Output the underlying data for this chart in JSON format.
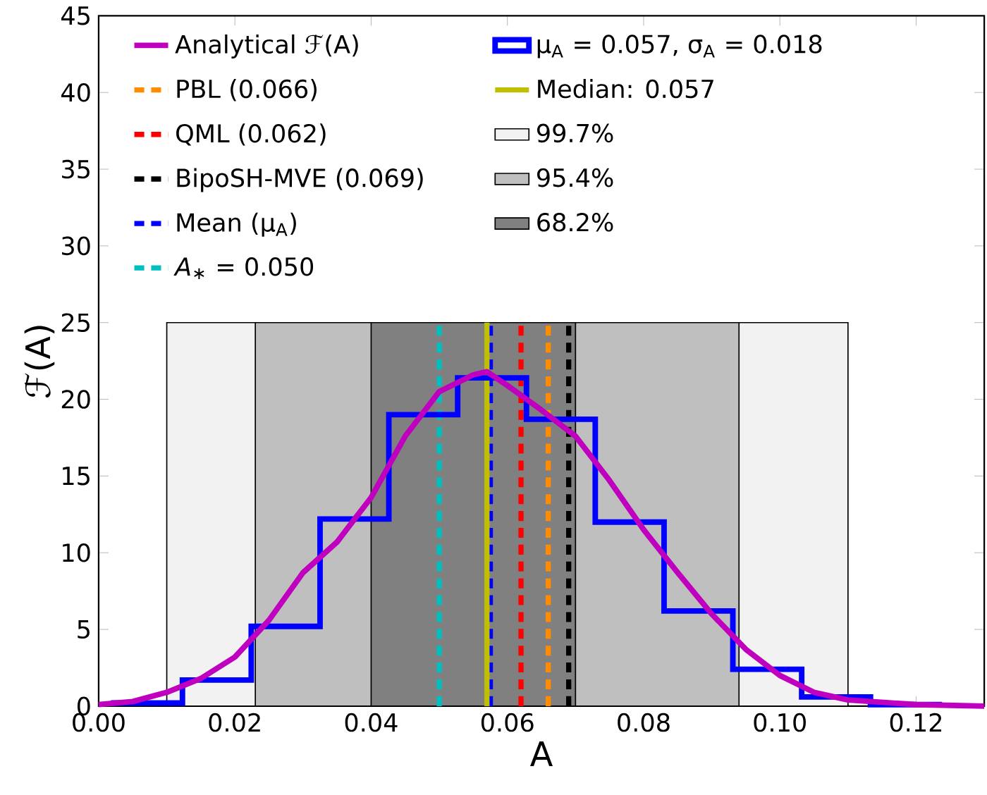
{
  "chart_data": {
    "type": "histogram",
    "xlabel": "A",
    "ylabel": "ℱ(A)",
    "xlim": [
      0,
      0.13
    ],
    "ylim": [
      0,
      45
    ],
    "xticks": [
      {
        "value": 0,
        "label": "0.00"
      },
      {
        "value": 0.02,
        "label": "0.02"
      },
      {
        "value": 0.04,
        "label": "0.04"
      },
      {
        "value": 0.06,
        "label": "0.06"
      },
      {
        "value": 0.08,
        "label": "0.08"
      },
      {
        "value": 0.1,
        "label": "0.10"
      },
      {
        "value": 0.12,
        "label": "0.12"
      }
    ],
    "yticks": [
      0,
      5,
      10,
      15,
      20,
      25,
      30,
      35,
      40,
      45
    ],
    "legend": "top",
    "marker": "none",
    "series": [
      {
        "type": "line",
        "name": "Analytical ℱ(A)",
        "color": "#bf00bf",
        "x": [
          0,
          0.005,
          0.01,
          0.015,
          0.02,
          0.025,
          0.03,
          0.035,
          0.04,
          0.045,
          0.05,
          0.055,
          0.057,
          0.06,
          0.065,
          0.07,
          0.075,
          0.08,
          0.085,
          0.09,
          0.095,
          0.1,
          0.105,
          0.11,
          0.12,
          0.13
        ],
        "values": [
          0.1,
          0.3,
          0.9,
          1.8,
          3.2,
          5.6,
          8.7,
          10.7,
          13.6,
          17.6,
          20.5,
          21.6,
          21.8,
          20.9,
          19.3,
          17.6,
          14.7,
          11.5,
          8.7,
          6.0,
          3.7,
          2.0,
          0.9,
          0.4,
          0.1,
          0
        ]
      },
      {
        "type": "histogram",
        "name": "μ$_{A}$ = 0.057, σ$_{A}$ = 0.018",
        "color": "#0000ff",
        "bins": [
          0.0022,
          0.0123,
          0.0224,
          0.0325,
          0.0426,
          0.0527,
          0.0628,
          0.0729,
          0.083,
          0.0931,
          0.1032,
          0.1133,
          0.1234
        ],
        "values": [
          0.2,
          1.7,
          5.2,
          12.2,
          19.0,
          21.4,
          18.7,
          12.0,
          6.2,
          2.4,
          0.6,
          0.1
        ]
      }
    ],
    "ref_lines": [
      {
        "axis": "x",
        "value": 0.066,
        "label": "PBL (0.066)",
        "color": "#ff8c00",
        "line_style": "dashed"
      },
      {
        "axis": "x",
        "value": 0.062,
        "label": "QML (0.062)",
        "color": "#ff0000",
        "line_style": "dashed"
      },
      {
        "axis": "x",
        "value": 0.069,
        "label": "BipoSH-MVE (0.069)",
        "color": "#000000",
        "line_style": "dashed"
      },
      {
        "axis": "x",
        "value": 0.0575,
        "label": "Mean (μ$_{A}$)",
        "color": "#0000ff",
        "line_style": "dashed"
      },
      {
        "axis": "x",
        "value": 0.05,
        "label": "*A*$_{∗}$ = 0.050",
        "color": "#00bfbf",
        "line_style": "dashed"
      },
      {
        "axis": "x",
        "value": 0.057,
        "label": "Median: 0.057",
        "color": "#bfbf00",
        "line_style": "solid"
      }
    ],
    "bands": [
      {
        "axis": "x",
        "from": 0.01,
        "to": 0.11,
        "label": "99.7%",
        "color": "#f2f2f2"
      },
      {
        "axis": "x",
        "from": 0.023,
        "to": 0.094,
        "label": "95.4%",
        "color": "#bfbfbf"
      },
      {
        "axis": "x",
        "from": 0.04,
        "to": 0.07,
        "label": "68.2%",
        "color": "#808080"
      }
    ]
  }
}
